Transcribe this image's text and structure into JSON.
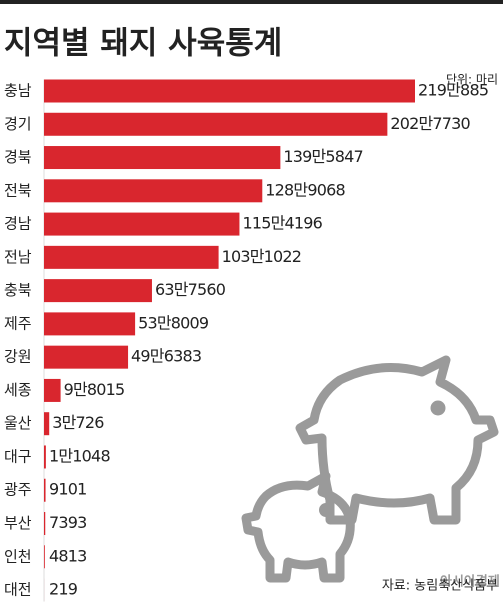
{
  "chart_data": {
    "type": "bar",
    "orientation": "horizontal",
    "title": "지역별 돼지 사육통계",
    "unit": "단위: 마리",
    "source": "자료: 농림축산식품부",
    "credit": "아시아경제",
    "color": "#d9262e",
    "categories": [
      "충남",
      "경기",
      "경북",
      "전북",
      "경남",
      "전남",
      "충북",
      "제주",
      "강원",
      "세종",
      "울산",
      "대구",
      "광주",
      "부산",
      "인천",
      "대전"
    ],
    "values": [
      2190885,
      2027730,
      1395847,
      1289068,
      1154196,
      1031022,
      637560,
      538009,
      496383,
      98015,
      30726,
      11048,
      9101,
      7393,
      4813,
      219
    ],
    "value_labels": [
      "219만885",
      "202만7730",
      "139만5847",
      "128만9068",
      "115만4196",
      "103만1022",
      "63만7560",
      "53만8009",
      "49만6383",
      "9만8015",
      "3만726",
      "1만1048",
      "9101",
      "7393",
      "4813",
      "219"
    ]
  }
}
